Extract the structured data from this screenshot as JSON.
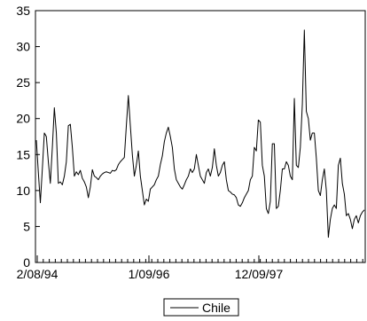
{
  "chart_data": {
    "type": "line",
    "title": "",
    "xlabel": "",
    "ylabel": "",
    "ylim": [
      0,
      35
    ],
    "yticks": [
      0,
      5,
      10,
      15,
      20,
      25,
      30,
      35
    ],
    "x_tick_labels": [
      "2/08/94",
      "1/09/96",
      "12/09/97"
    ],
    "legend": {
      "placement": "bottom-center",
      "entries": [
        "Chile"
      ]
    },
    "grid": false,
    "series": [
      {
        "name": "Chile",
        "color": "#000000",
        "values": [
          17.0,
          12.5,
          8.3,
          13.0,
          18.0,
          17.5,
          14.0,
          11.0,
          16.0,
          21.5,
          18.0,
          11.0,
          11.2,
          10.8,
          12.0,
          14.0,
          19.0,
          19.2,
          16.0,
          12.0,
          12.6,
          12.2,
          12.8,
          11.7,
          11.2,
          10.5,
          9.0,
          10.5,
          12.9,
          12.0,
          11.8,
          11.5,
          12.0,
          12.3,
          12.5,
          12.6,
          12.5,
          12.4,
          12.8,
          12.7,
          12.9,
          13.6,
          14.0,
          14.3,
          14.6,
          19.0,
          23.2,
          19.0,
          15.0,
          12.0,
          13.5,
          15.5,
          12.0,
          10.0,
          8.0,
          8.8,
          8.5,
          10.2,
          10.5,
          10.8,
          11.5,
          12.0,
          13.6,
          14.8,
          16.8,
          18.0,
          18.8,
          17.5,
          16.0,
          13.0,
          11.5,
          11.0,
          10.5,
          10.2,
          10.8,
          11.5,
          12.0,
          13.0,
          12.5,
          13.0,
          15.0,
          13.5,
          12.0,
          11.5,
          11.0,
          12.5,
          13.0,
          12.0,
          13.2,
          15.8,
          13.5,
          12.0,
          12.5,
          13.5,
          14.0,
          11.5,
          10.0,
          9.8,
          9.5,
          9.4,
          9.0,
          8.0,
          7.8,
          8.3,
          9.0,
          9.5,
          10.0,
          11.5,
          12.0,
          16.0,
          15.5,
          19.8,
          19.5,
          13.5,
          12.0,
          7.5,
          6.8,
          8.5,
          16.5,
          16.5,
          7.5,
          7.8,
          10.0,
          13.0,
          13.0,
          14.0,
          13.5,
          12.0,
          11.5,
          22.8,
          13.5,
          13.2,
          16.0,
          22.0,
          32.3,
          21.0,
          20.0,
          17.0,
          18.0,
          18.0,
          14.5,
          10.0,
          9.3,
          11.5,
          13.0,
          10.0,
          3.5,
          6.0,
          7.5,
          8.0,
          7.5,
          13.5,
          14.5,
          11.0,
          9.5,
          6.5,
          6.8,
          6.0,
          4.7,
          6.0,
          6.5,
          5.5,
          6.5,
          7.0,
          7.3
        ]
      }
    ]
  }
}
